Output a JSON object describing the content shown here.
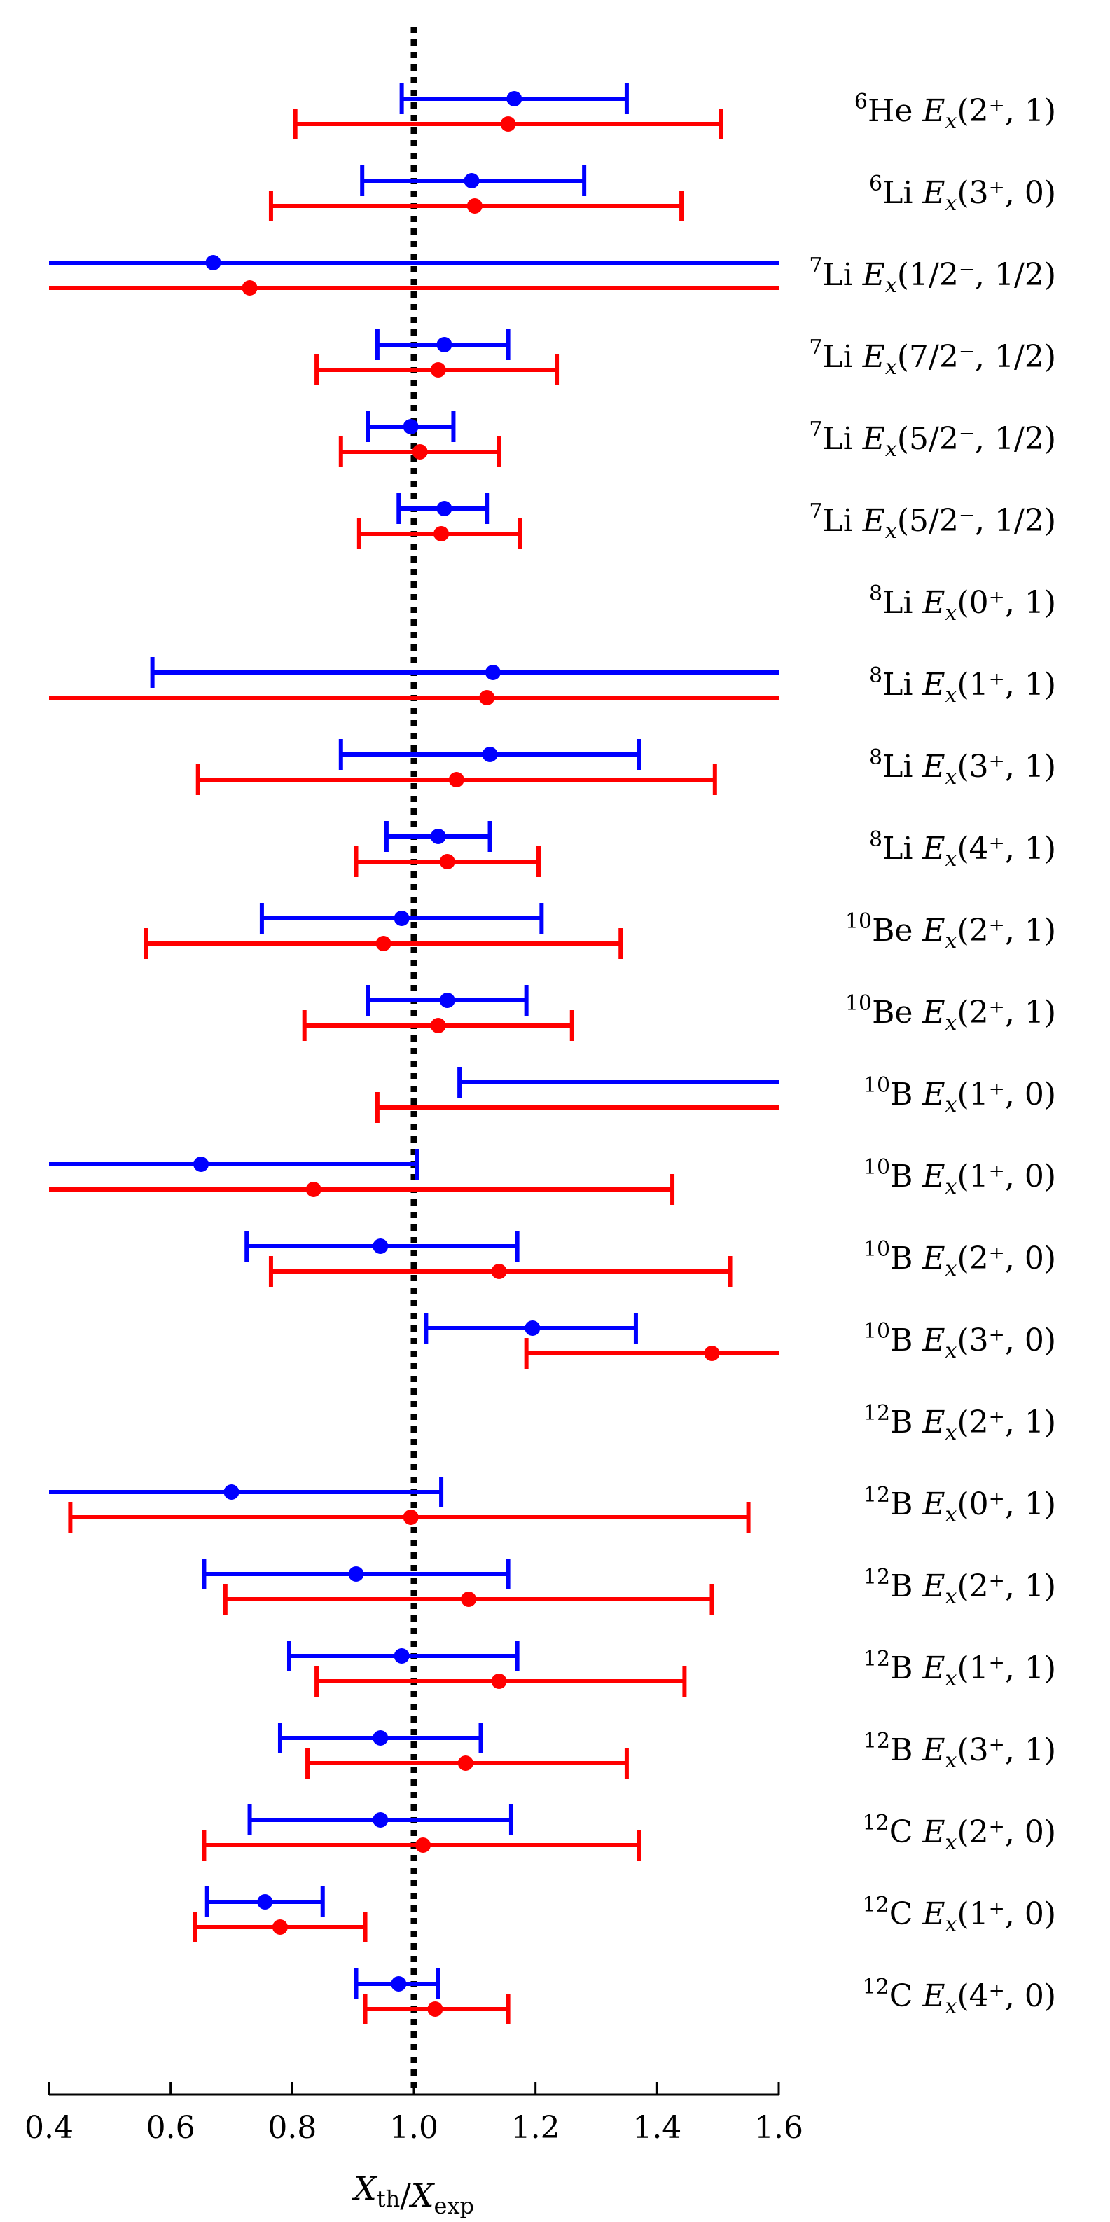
{
  "chart_data": {
    "type": "errorbar",
    "xlabel": "X_th / X_exp",
    "xlim": [
      0.4,
      1.6
    ],
    "xticks": [
      "0.4",
      "0.6",
      "0.8",
      "1.0",
      "1.2",
      "1.4",
      "1.6"
    ],
    "reference_line": {
      "x": 1.0,
      "style": "dotted"
    },
    "colors": {
      "blue": "#0000ff",
      "red": "#ff0000",
      "reference": "#000000"
    },
    "rows": [
      {
        "label": {
          "sup": "6",
          "el": "He",
          "state": "(2⁺, 1)"
        },
        "blue": {
          "val": 1.165,
          "lo": 0.98,
          "hi": 1.35
        },
        "red": {
          "val": 1.155,
          "lo": 0.805,
          "hi": 1.505
        }
      },
      {
        "label": {
          "sup": "6",
          "el": "Li",
          "state": "(3⁺, 0)"
        },
        "blue": {
          "val": 1.095,
          "lo": 0.915,
          "hi": 1.28
        },
        "red": {
          "val": 1.1,
          "lo": 0.765,
          "hi": 1.44
        }
      },
      {
        "label": {
          "sup": "7",
          "el": "Li",
          "state": "(1/2⁻, 1/2)"
        },
        "blue": {
          "val": 0.67,
          "lo": 0.4,
          "hi": 1.6
        },
        "red": {
          "val": 0.73,
          "lo": 0.4,
          "hi": 1.6
        }
      },
      {
        "label": {
          "sup": "7",
          "el": "Li",
          "state": "(7/2⁻, 1/2)"
        },
        "blue": {
          "val": 1.05,
          "lo": 0.94,
          "hi": 1.155
        },
        "red": {
          "val": 1.04,
          "lo": 0.84,
          "hi": 1.235
        }
      },
      {
        "label": {
          "sup": "7",
          "el": "Li",
          "state": "(5/2⁻, 1/2)"
        },
        "blue": {
          "val": 0.995,
          "lo": 0.925,
          "hi": 1.065
        },
        "red": {
          "val": 1.01,
          "lo": 0.88,
          "hi": 1.14
        }
      },
      {
        "label": {
          "sup": "7",
          "el": "Li",
          "state": "(5/2⁻, 1/2)"
        },
        "blue": {
          "val": 1.05,
          "lo": 0.975,
          "hi": 1.12
        },
        "red": {
          "val": 1.045,
          "lo": 0.91,
          "hi": 1.175
        }
      },
      {
        "label": {
          "sup": "8",
          "el": "Li",
          "state": "(0⁺, 1)"
        },
        "blue": null,
        "red": null
      },
      {
        "label": {
          "sup": "8",
          "el": "Li",
          "state": "(1⁺, 1)"
        },
        "blue": {
          "val": 1.13,
          "lo": 0.57,
          "hi": 1.6
        },
        "red": {
          "val": 1.12,
          "lo": 0.4,
          "hi": 1.6
        }
      },
      {
        "label": {
          "sup": "8",
          "el": "Li",
          "state": "(3⁺, 1)"
        },
        "blue": {
          "val": 1.125,
          "lo": 0.88,
          "hi": 1.37
        },
        "red": {
          "val": 1.07,
          "lo": 0.645,
          "hi": 1.495
        }
      },
      {
        "label": {
          "sup": "8",
          "el": "Li",
          "state": "(4⁺, 1)"
        },
        "blue": {
          "val": 1.04,
          "lo": 0.955,
          "hi": 1.125
        },
        "red": {
          "val": 1.055,
          "lo": 0.905,
          "hi": 1.205
        }
      },
      {
        "label": {
          "sup": "10",
          "el": "Be",
          "state": "(2⁺, 1)"
        },
        "blue": {
          "val": 0.98,
          "lo": 0.75,
          "hi": 1.21
        },
        "red": {
          "val": 0.95,
          "lo": 0.56,
          "hi": 1.34
        }
      },
      {
        "label": {
          "sup": "10",
          "el": "Be",
          "state": "(2⁺, 1)"
        },
        "blue": {
          "val": 1.055,
          "lo": 0.925,
          "hi": 1.185
        },
        "red": {
          "val": 1.04,
          "lo": 0.82,
          "hi": 1.26
        }
      },
      {
        "label": {
          "sup": "10",
          "el": "B",
          "state": "(1⁺, 0)"
        },
        "blue": {
          "val": null,
          "lo": 1.075,
          "hi": 1.6
        },
        "red": {
          "val": null,
          "lo": 0.94,
          "hi": 1.6
        }
      },
      {
        "label": {
          "sup": "10",
          "el": "B",
          "state": "(1⁺, 0)"
        },
        "blue": {
          "val": 0.65,
          "lo": 0.4,
          "hi": 1.005
        },
        "red": {
          "val": 0.835,
          "lo": 0.4,
          "hi": 1.425
        }
      },
      {
        "label": {
          "sup": "10",
          "el": "B",
          "state": "(2⁺, 0)"
        },
        "blue": {
          "val": 0.945,
          "lo": 0.725,
          "hi": 1.17
        },
        "red": {
          "val": 1.14,
          "lo": 0.765,
          "hi": 1.52
        }
      },
      {
        "label": {
          "sup": "10",
          "el": "B",
          "state": "(3⁺, 0)"
        },
        "blue": {
          "val": 1.195,
          "lo": 1.02,
          "hi": 1.365
        },
        "red": {
          "val": 1.49,
          "lo": 1.185,
          "hi": 1.6
        }
      },
      {
        "label": {
          "sup": "12",
          "el": "B",
          "state": "(2⁺, 1)"
        },
        "blue": null,
        "red": null
      },
      {
        "label": {
          "sup": "12",
          "el": "B",
          "state": "(0⁺, 1)"
        },
        "blue": {
          "val": 0.7,
          "lo": 0.4,
          "hi": 1.045
        },
        "red": {
          "val": 0.995,
          "lo": 0.435,
          "hi": 1.55
        }
      },
      {
        "label": {
          "sup": "12",
          "el": "B",
          "state": "(2⁺, 1)"
        },
        "blue": {
          "val": 0.905,
          "lo": 0.655,
          "hi": 1.155
        },
        "red": {
          "val": 1.09,
          "lo": 0.69,
          "hi": 1.49
        }
      },
      {
        "label": {
          "sup": "12",
          "el": "B",
          "state": "(1⁺, 1)"
        },
        "blue": {
          "val": 0.98,
          "lo": 0.795,
          "hi": 1.17
        },
        "red": {
          "val": 1.14,
          "lo": 0.84,
          "hi": 1.445
        }
      },
      {
        "label": {
          "sup": "12",
          "el": "B",
          "state": "(3⁺, 1)"
        },
        "blue": {
          "val": 0.945,
          "lo": 0.78,
          "hi": 1.11
        },
        "red": {
          "val": 1.085,
          "lo": 0.825,
          "hi": 1.35
        }
      },
      {
        "label": {
          "sup": "12",
          "el": "C",
          "state": "(2⁺, 0)"
        },
        "blue": {
          "val": 0.945,
          "lo": 0.73,
          "hi": 1.16
        },
        "red": {
          "val": 1.015,
          "lo": 0.655,
          "hi": 1.37
        }
      },
      {
        "label": {
          "sup": "12",
          "el": "C",
          "state": "(1⁺, 0)"
        },
        "blue": {
          "val": 0.755,
          "lo": 0.66,
          "hi": 0.85
        },
        "red": {
          "val": 0.78,
          "lo": 0.64,
          "hi": 0.92
        }
      },
      {
        "label": {
          "sup": "12",
          "el": "C",
          "state": "(4⁺, 0)"
        },
        "blue": {
          "val": 0.975,
          "lo": 0.905,
          "hi": 1.04
        },
        "red": {
          "val": 1.035,
          "lo": 0.92,
          "hi": 1.155
        }
      }
    ]
  }
}
